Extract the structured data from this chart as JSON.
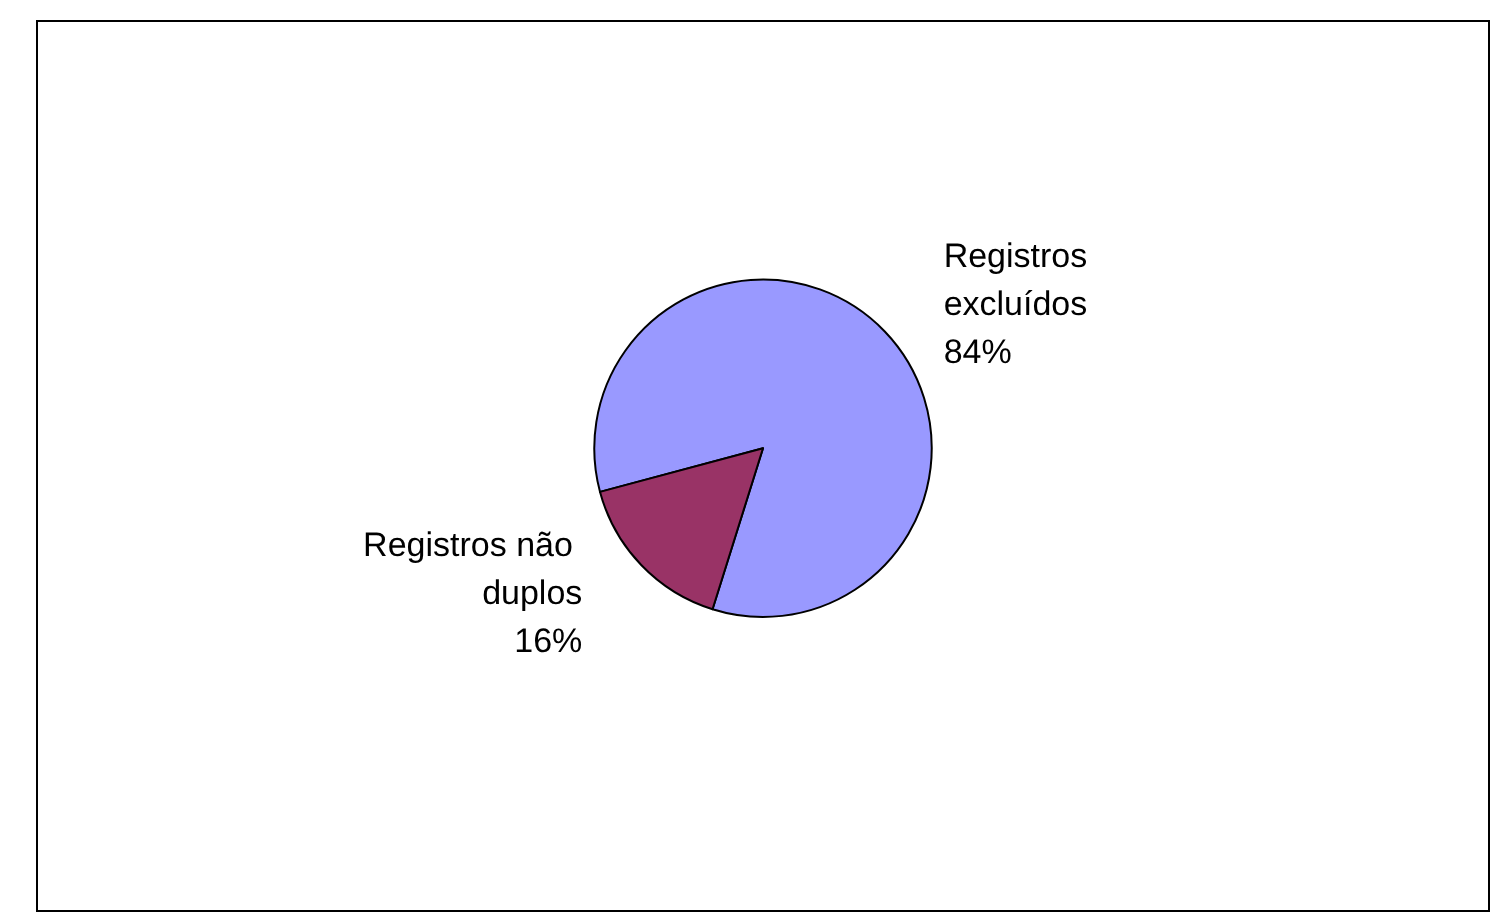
{
  "chart_data": {
    "type": "pie",
    "categories": [
      "Registros excluídos",
      "Registros não duplos"
    ],
    "values": [
      84,
      16
    ],
    "colors": [
      "#9999ff",
      "#993366"
    ],
    "value_labels": [
      "84%",
      "16%"
    ]
  }
}
